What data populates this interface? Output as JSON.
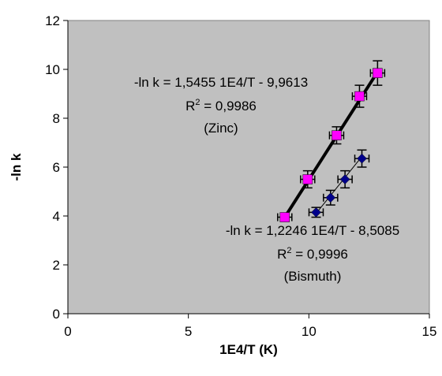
{
  "chart_data": {
    "type": "scatter",
    "xlabel": "1E4/T (K)",
    "ylabel": "-ln k",
    "xlim": [
      0,
      15
    ],
    "ylim": [
      0,
      12
    ],
    "x_ticks": [
      "0",
      "5",
      "10",
      "15"
    ],
    "y_ticks": [
      "0",
      "2",
      "4",
      "6",
      "8",
      "10",
      "12"
    ],
    "plot_background": "#c0c0c0",
    "grid": false,
    "legend": "none",
    "series": [
      {
        "color": "#ff00ff",
        "marker": "square",
        "x": [
          9.0,
          9.95,
          11.15,
          12.1,
          12.85
        ],
        "y": [
          3.95,
          5.5,
          7.3,
          8.9,
          9.85
        ],
        "y_err": [
          0.15,
          0.35,
          0.35,
          0.45,
          0.5
        ],
        "fit": {
          "slope": 1.5455,
          "intercept": -9.9613
        },
        "annotation": [
          "-ln k = 1,5455 1E4/T - 9,9613",
          "R",
          "2",
          " = 0,9986",
          "(Zinc)"
        ]
      },
      {
        "color": "#00008b",
        "marker": "diamond",
        "x": [
          10.3,
          10.9,
          11.5,
          12.2
        ],
        "y": [
          4.15,
          4.75,
          5.5,
          6.35
        ],
        "y_err": [
          0.2,
          0.3,
          0.35,
          0.35
        ],
        "fit": {
          "slope": 1.2246,
          "intercept": -8.5085
        },
        "annotation": [
          "-ln k = 1,2246 1E4/T - 8,5085",
          "R",
          "2",
          " = 0,9996",
          "(Bismuth)"
        ]
      }
    ]
  }
}
